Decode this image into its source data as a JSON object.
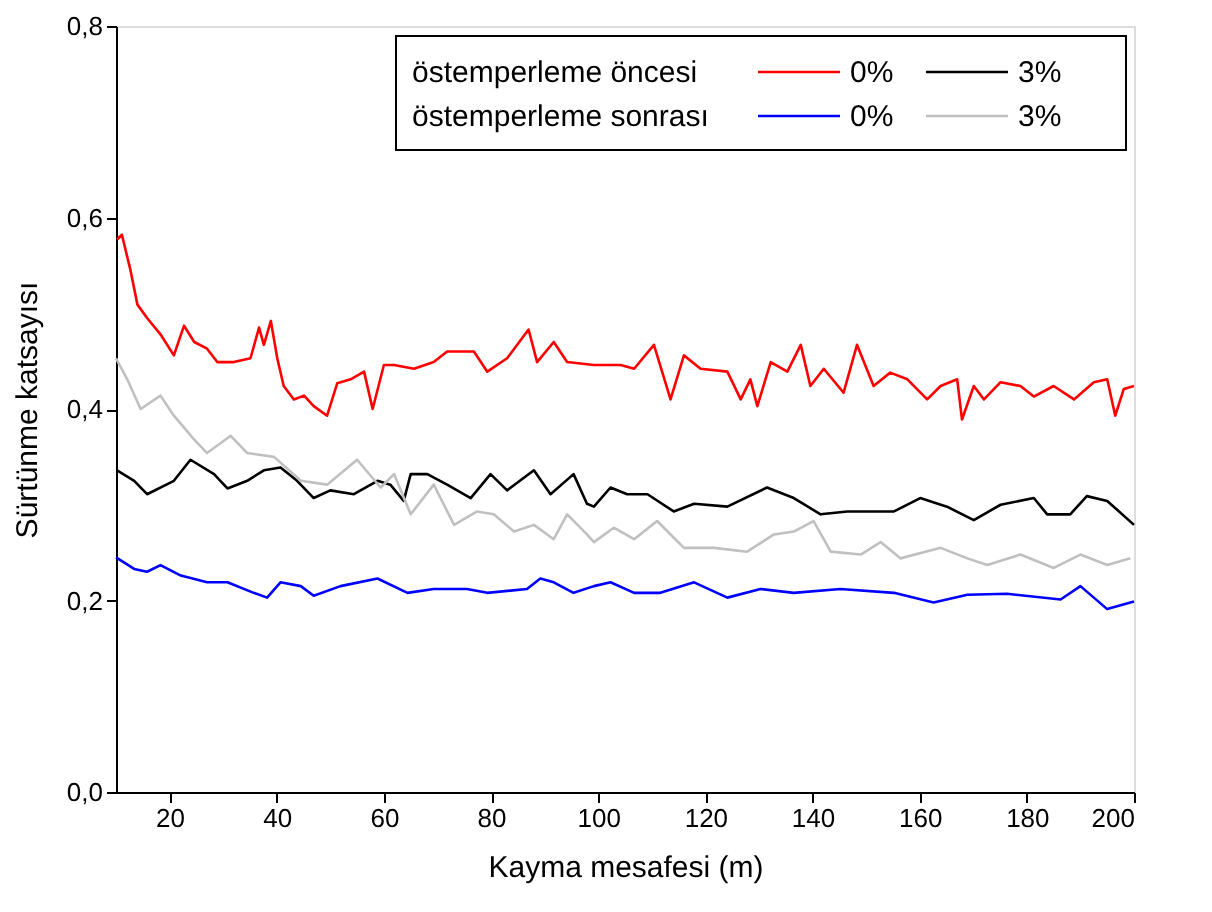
{
  "chart_data": {
    "type": "line",
    "xlabel": "Kayma mesafesi (m)",
    "ylabel": "Sürtünme katsayısı",
    "xlim": [
      10,
      200
    ],
    "xticks": [
      20,
      40,
      60,
      80,
      100,
      120,
      140,
      160,
      180,
      200
    ],
    "ylim": [
      0,
      0.8
    ],
    "yticks": [
      {
        "value": 0,
        "label": "0,0"
      },
      {
        "value": 0.2,
        "label": "0,2"
      },
      {
        "value": 0.4,
        "label": "0,4"
      },
      {
        "value": 0.6,
        "label": "0,6"
      },
      {
        "value": 0.8,
        "label": "0,8"
      }
    ],
    "grid": false,
    "legend": "top right",
    "marker": "none",
    "line_style": "solid",
    "annotations": [
      "östemperleme öncesi",
      "östemperleme sonrası"
    ],
    "series": [
      {
        "name": "0%",
        "color": "#ff0000",
        "x": [
          10.2,
          11.1,
          12.7,
          14.0,
          15.8,
          18.3,
          20.8,
          22.7,
          24.6,
          27.0,
          28.9,
          32.0,
          35.1,
          36.7,
          37.6,
          38.9,
          40.1,
          41.3,
          43.2,
          45.1,
          46.9,
          49.4,
          51.3,
          53.8,
          56.3,
          57.9,
          60.0,
          61.9,
          65.6,
          69.3,
          71.8,
          76.8,
          79.3,
          83.0,
          87.0,
          88.6,
          91.7,
          94.2,
          99.2,
          104.2,
          106.7,
          110.4,
          113.5,
          116.0,
          119.1,
          124.1,
          126.6,
          128.4,
          129.7,
          132.2,
          135.3,
          137.8,
          139.6,
          142.1,
          145.8,
          148.3,
          151.4,
          154.5,
          157.7,
          161.4,
          163.9,
          167.0,
          167.9,
          170.1,
          172.0,
          175.1,
          178.8,
          181.3,
          185.0,
          188.8,
          192.5,
          195.0,
          196.5,
          198.1,
          200
        ],
        "values": [
          0.577,
          0.582,
          0.545,
          0.509,
          0.495,
          0.478,
          0.456,
          0.487,
          0.47,
          0.463,
          0.449,
          0.449,
          0.453,
          0.485,
          0.467,
          0.492,
          0.453,
          0.424,
          0.41,
          0.414,
          0.403,
          0.393,
          0.427,
          0.431,
          0.439,
          0.4,
          0.446,
          0.446,
          0.442,
          0.449,
          0.46,
          0.46,
          0.439,
          0.453,
          0.483,
          0.449,
          0.47,
          0.449,
          0.446,
          0.446,
          0.442,
          0.467,
          0.41,
          0.456,
          0.442,
          0.439,
          0.41,
          0.431,
          0.403,
          0.449,
          0.439,
          0.467,
          0.424,
          0.442,
          0.417,
          0.467,
          0.424,
          0.438,
          0.431,
          0.41,
          0.424,
          0.431,
          0.389,
          0.424,
          0.41,
          0.428,
          0.424,
          0.413,
          0.424,
          0.41,
          0.428,
          0.431,
          0.393,
          0.421,
          0.424
        ]
      },
      {
        "name": "3%",
        "color": "#000000",
        "x": [
          10.2,
          13.4,
          15.8,
          20.8,
          23.9,
          28.3,
          30.8,
          34.5,
          37.6,
          40.7,
          43.8,
          46.9,
          50.0,
          54.4,
          58.8,
          61.2,
          63.7,
          65.0,
          68.1,
          71.8,
          76.2,
          79.9,
          83.0,
          88.0,
          91.1,
          95.4,
          97.9,
          99.2,
          102.3,
          105.4,
          109.2,
          114.1,
          117.9,
          124.1,
          131.5,
          136.5,
          141.5,
          146.5,
          155.2,
          160.1,
          165.1,
          170.1,
          175.1,
          181.3,
          183.8,
          188.1,
          191.2,
          195.0,
          200
        ],
        "values": [
          0.336,
          0.325,
          0.311,
          0.325,
          0.347,
          0.332,
          0.317,
          0.325,
          0.336,
          0.339,
          0.325,
          0.307,
          0.315,
          0.311,
          0.325,
          0.321,
          0.304,
          0.332,
          0.332,
          0.321,
          0.307,
          0.332,
          0.315,
          0.336,
          0.311,
          0.332,
          0.301,
          0.298,
          0.318,
          0.311,
          0.311,
          0.293,
          0.301,
          0.298,
          0.318,
          0.307,
          0.29,
          0.293,
          0.293,
          0.307,
          0.298,
          0.284,
          0.3,
          0.307,
          0.29,
          0.29,
          0.309,
          0.304,
          0.279
        ]
      },
      {
        "name": "0%",
        "color": "#0000ff",
        "x": [
          10,
          13.4,
          15.8,
          18.3,
          22.1,
          27.0,
          30.8,
          35.7,
          38.2,
          40.7,
          44.5,
          46.9,
          51.9,
          58.8,
          64.4,
          69.3,
          75.5,
          79.3,
          86.7,
          89.2,
          91.7,
          95.4,
          99.2,
          102.3,
          106.7,
          111.6,
          117.9,
          124.1,
          130.3,
          136.5,
          145.2,
          155.2,
          162.6,
          168.9,
          176.3,
          186.3,
          190.0,
          195.0,
          200
        ],
        "values": [
          0.245,
          0.233,
          0.23,
          0.237,
          0.226,
          0.219,
          0.219,
          0.208,
          0.203,
          0.219,
          0.215,
          0.205,
          0.215,
          0.223,
          0.208,
          0.212,
          0.212,
          0.208,
          0.212,
          0.223,
          0.219,
          0.208,
          0.215,
          0.219,
          0.208,
          0.208,
          0.219,
          0.203,
          0.212,
          0.208,
          0.212,
          0.208,
          0.198,
          0.206,
          0.207,
          0.201,
          0.215,
          0.191,
          0.199
        ]
      },
      {
        "name": "3%",
        "color": "#c0c0c0",
        "x": [
          10,
          12.1,
          14.6,
          18.3,
          20.8,
          24.6,
          27.0,
          31.4,
          34.5,
          39.5,
          44.5,
          49.4,
          55.0,
          59.4,
          61.9,
          65.0,
          69.3,
          73.1,
          77.4,
          80.5,
          84.3,
          88.0,
          91.7,
          94.2,
          97.9,
          99.2,
          102.9,
          106.7,
          111.0,
          116.0,
          121.6,
          127.8,
          132.8,
          136.5,
          140.2,
          143.4,
          149.0,
          152.7,
          156.4,
          163.9,
          168.9,
          172.6,
          178.8,
          185.0,
          190.0,
          195.0,
          199.3
        ],
        "values": [
          0.453,
          0.431,
          0.4,
          0.414,
          0.393,
          0.368,
          0.354,
          0.372,
          0.354,
          0.35,
          0.325,
          0.321,
          0.347,
          0.318,
          0.332,
          0.29,
          0.321,
          0.279,
          0.293,
          0.29,
          0.272,
          0.279,
          0.264,
          0.29,
          0.269,
          0.261,
          0.276,
          0.264,
          0.283,
          0.255,
          0.255,
          0.251,
          0.269,
          0.272,
          0.283,
          0.251,
          0.248,
          0.261,
          0.244,
          0.255,
          0.244,
          0.237,
          0.248,
          0.234,
          0.248,
          0.237,
          0.244
        ]
      }
    ]
  }
}
